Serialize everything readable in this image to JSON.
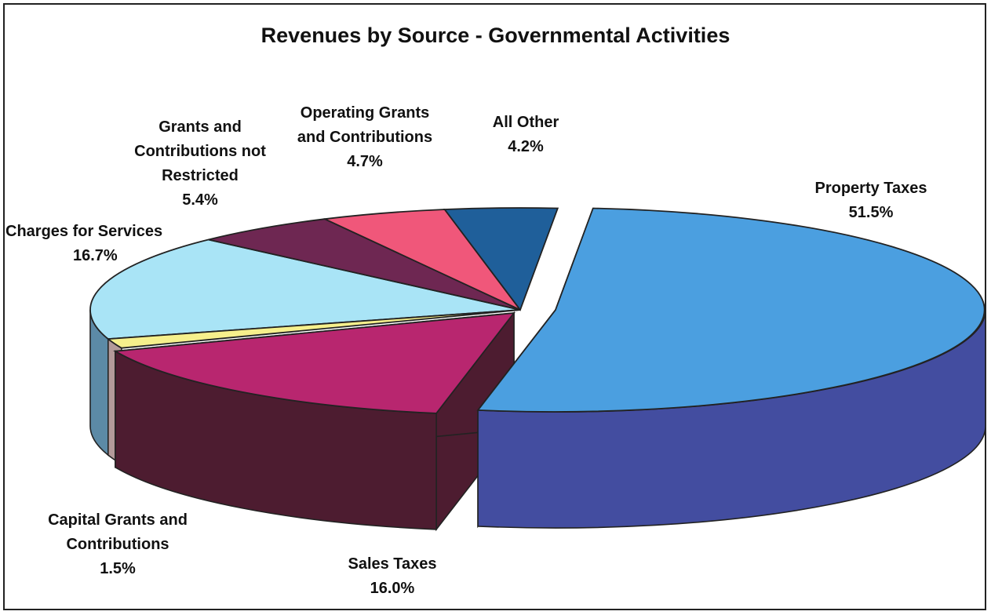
{
  "chart_data": {
    "type": "pie",
    "title": "Revenues by Source - Governmental Activities",
    "slices": [
      {
        "label": "Property Taxes",
        "value": 51.5,
        "display": "51.5%",
        "color": "#4b9fe0",
        "side_color": "#434da0"
      },
      {
        "label": "Sales Taxes",
        "value": 16.0,
        "display": "16.0%",
        "color": "#b8266f",
        "side_color": "#4d1c30"
      },
      {
        "label": "Capital Grants and Contributions",
        "value": 1.5,
        "display": "1.5%",
        "color": "#f6f08c",
        "side_color": "#b39a9a"
      },
      {
        "label": "Charges for Services",
        "value": 16.7,
        "display": "16.7%",
        "color": "#a9e4f6",
        "side_color": "#5c8aa6"
      },
      {
        "label": "Grants and Contributions not Restricted",
        "value": 5.4,
        "display": "5.4%",
        "color": "#6e2752",
        "side_color": "#3e1530"
      },
      {
        "label": "Operating Grants and Contributions",
        "value": 4.7,
        "display": "4.7%",
        "color": "#f0577a",
        "side_color": "#a43150"
      },
      {
        "label": "All Other",
        "value": 4.2,
        "display": "4.2%",
        "color": "#1f5f9a",
        "side_color": "#123c66"
      }
    ]
  },
  "labels": {
    "property_taxes": {
      "name": "Property Taxes",
      "pct": "51.5%"
    },
    "sales_taxes": {
      "name": "Sales Taxes",
      "pct": "16.0%"
    },
    "capital_grants": {
      "line1": "Capital Grants and",
      "line2": "Contributions",
      "pct": "1.5%"
    },
    "charges": {
      "name": "Charges for Services",
      "pct": "16.7%"
    },
    "grants_not_restricted": {
      "line1": "Grants and",
      "line2": "Contributions not",
      "line3": "Restricted",
      "pct": "5.4%"
    },
    "operating_grants": {
      "line1": "Operating Grants",
      "line2": "and Contributions",
      "pct": "4.7%"
    },
    "all_other": {
      "name": "All Other",
      "pct": "4.2%"
    }
  }
}
